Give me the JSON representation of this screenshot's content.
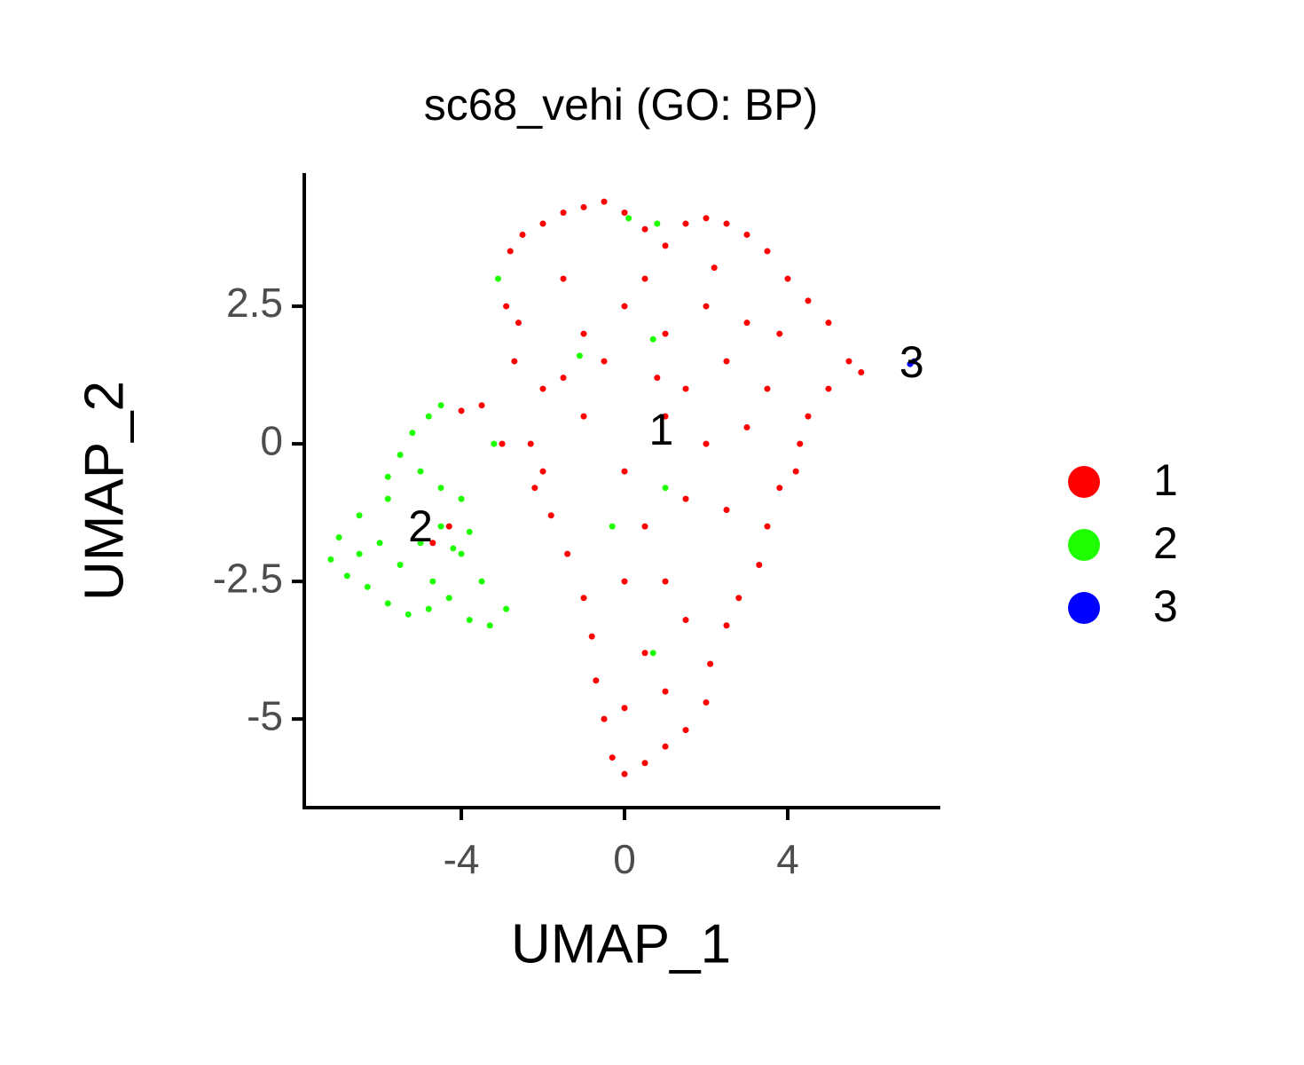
{
  "chart_data": {
    "type": "scatter",
    "title": "sc68_vehi (GO: BP)",
    "x_label": "UMAP_1",
    "y_label": "UMAP_2",
    "xlim": [
      -7.85,
      7.74
    ],
    "ylim": [
      -6.61,
      4.92
    ],
    "xticks": [
      -4,
      0,
      4
    ],
    "yticks": [
      -5.0,
      -2.5,
      0.0,
      2.5
    ],
    "grid": false,
    "legend": "right",
    "series": [
      {
        "name": "1",
        "color": "#ff0000",
        "x": [
          -2.8,
          -2.5,
          -2,
          -1.5,
          -1,
          -0.5,
          0,
          0.5,
          1,
          1.5,
          2,
          2.5,
          3,
          3.5,
          4,
          4.5,
          5,
          5.5,
          5.8,
          5,
          4.5,
          4.3,
          4.2,
          3.8,
          3.5,
          3.3,
          2.8,
          2.5,
          2.1,
          2,
          1.5,
          1,
          0.5,
          0,
          -0.3,
          -0.5,
          -0.7,
          -0.8,
          -1,
          -1.4,
          -1.8,
          -2,
          -2.3,
          -3,
          -3.5,
          -4,
          -2.7,
          -2.9,
          -2.6,
          -1.5,
          -1,
          -0.5,
          0,
          0.5,
          1,
          1.5,
          2,
          2.5,
          3,
          3.5,
          3,
          2,
          1,
          0,
          -1,
          -1.5,
          0.5,
          1.5,
          2.5,
          1,
          0,
          1.5,
          0.5,
          1,
          0,
          -2,
          -2.2,
          0.8,
          2.2,
          3.8,
          -4.7,
          -4.3
        ],
        "y": [
          3.5,
          3.8,
          4.0,
          4.2,
          4.3,
          4.4,
          4.2,
          3.9,
          3.6,
          4.0,
          4.1,
          4.0,
          3.8,
          3.5,
          3.0,
          2.6,
          2.2,
          1.5,
          1.3,
          1.0,
          0.5,
          0,
          -0.5,
          -0.8,
          -1.5,
          -2.2,
          -2.8,
          -3.3,
          -4,
          -4.7,
          -5.2,
          -5.5,
          -5.8,
          -6.0,
          -5.7,
          -5,
          -4.3,
          -3.5,
          -2.8,
          -2,
          -1.3,
          -0.5,
          0,
          0,
          0.7,
          0.6,
          1.5,
          2.5,
          2.2,
          3,
          2,
          1.5,
          2.5,
          3,
          2,
          1,
          2.5,
          1.5,
          2.2,
          1,
          0.3,
          0,
          0.5,
          -0.5,
          0.5,
          1.2,
          -1.5,
          -1,
          -1.2,
          -2.5,
          -2.5,
          -3.2,
          -3.8,
          -4.5,
          -4.8,
          1,
          -0.8,
          1.2,
          3.2,
          2,
          -1.8,
          -1.5
        ]
      },
      {
        "name": "2",
        "color": "#1eff00",
        "x": [
          -4.5,
          -4.8,
          -5.2,
          -5.5,
          -5,
          -4.5,
          -4,
          -5.8,
          -6.5,
          -7,
          -7.2,
          -6.8,
          -6.3,
          -5.8,
          -5.3,
          -4.8,
          -4.3,
          -3.8,
          -3.3,
          -2.9,
          -3.5,
          -4,
          -4.5,
          -5,
          -5.5,
          -6,
          -6.5,
          -4.2,
          -3.8,
          -5.8,
          -4.7,
          -3.2,
          -3.1,
          0.7,
          -1.1,
          0.8,
          0.1,
          1,
          -0.3,
          0.7
        ],
        "y": [
          0.7,
          0.5,
          0.2,
          -0.2,
          -0.5,
          -0.8,
          -1,
          -1,
          -1.3,
          -1.7,
          -2.1,
          -2.4,
          -2.6,
          -2.9,
          -3.1,
          -3,
          -2.8,
          -3.2,
          -3.3,
          -3,
          -2.5,
          -2,
          -1.5,
          -1.8,
          -2.2,
          -1.8,
          -2,
          -1.9,
          -1.6,
          -0.6,
          -2.5,
          0,
          3,
          1.9,
          1.6,
          4.0,
          4.1,
          -0.8,
          -1.5,
          -3.8
        ]
      },
      {
        "name": "3",
        "color": "#0000ff",
        "x": [
          7.0,
          7.1
        ],
        "y": [
          1.45,
          1.5
        ]
      }
    ],
    "cluster_labels": [
      {
        "label": "1",
        "x": 0.9,
        "y": 0.2
      },
      {
        "label": "2",
        "x": -5.0,
        "y": -1.56
      },
      {
        "label": "3",
        "x": 7.04,
        "y": 1.42
      }
    ]
  }
}
